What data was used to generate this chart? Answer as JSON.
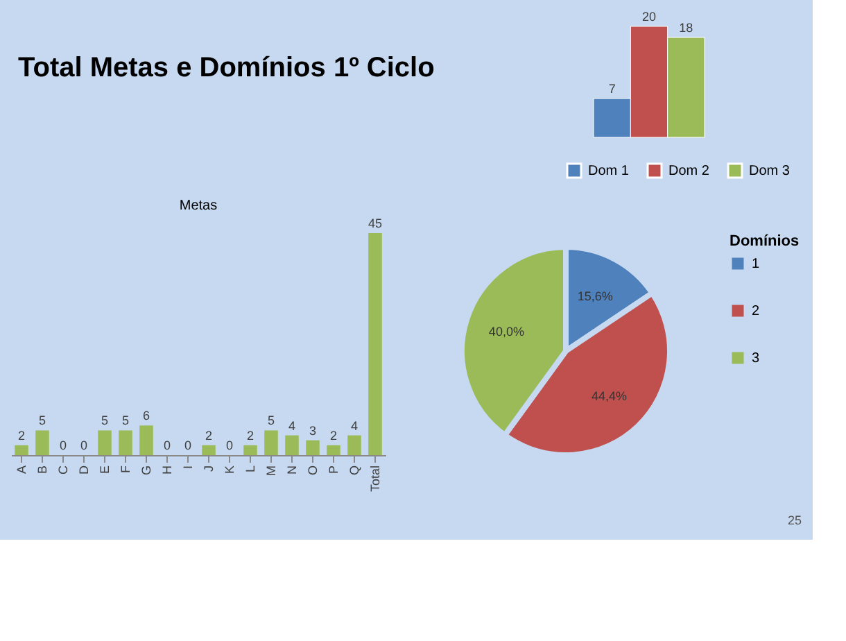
{
  "chart_data": [
    {
      "type": "bar",
      "annotations": [
        "Total Metas e Domínios 1º Ciclo",
        "25"
      ],
      "categories": [
        null
      ],
      "series": [
        {
          "name": "Dom 1",
          "color": "#4f81bd",
          "values": [
            7
          ]
        },
        {
          "name": "Dom 2",
          "color": "#c0504d",
          "values": [
            20
          ]
        },
        {
          "name": "Dom 3",
          "color": "#9bbb59",
          "values": [
            18
          ]
        }
      ],
      "data_labels": true,
      "legend": "bottom"
    },
    {
      "type": "bar",
      "title": "Metas",
      "categories": [
        "A",
        "B",
        "C",
        "D",
        "E",
        "F",
        "G",
        "H",
        "I",
        "J",
        "K",
        "L",
        "M",
        "N",
        "O",
        "P",
        "Q",
        "Total"
      ],
      "values": [
        2,
        5,
        0,
        0,
        5,
        5,
        6,
        0,
        0,
        2,
        0,
        2,
        5,
        4,
        3,
        2,
        4,
        45
      ],
      "color": "#9bbb59",
      "data_labels": true
    },
    {
      "type": "pie",
      "legend_title": "Domínios",
      "categories": [
        "1",
        "2",
        "3"
      ],
      "values": [
        15.6,
        44.4,
        40.0
      ],
      "colors": [
        "#4f81bd",
        "#c0504d",
        "#9bbb59"
      ],
      "value_labels": [
        "15,6%",
        "44,4%",
        "40,0%"
      ],
      "legend": "right"
    }
  ]
}
